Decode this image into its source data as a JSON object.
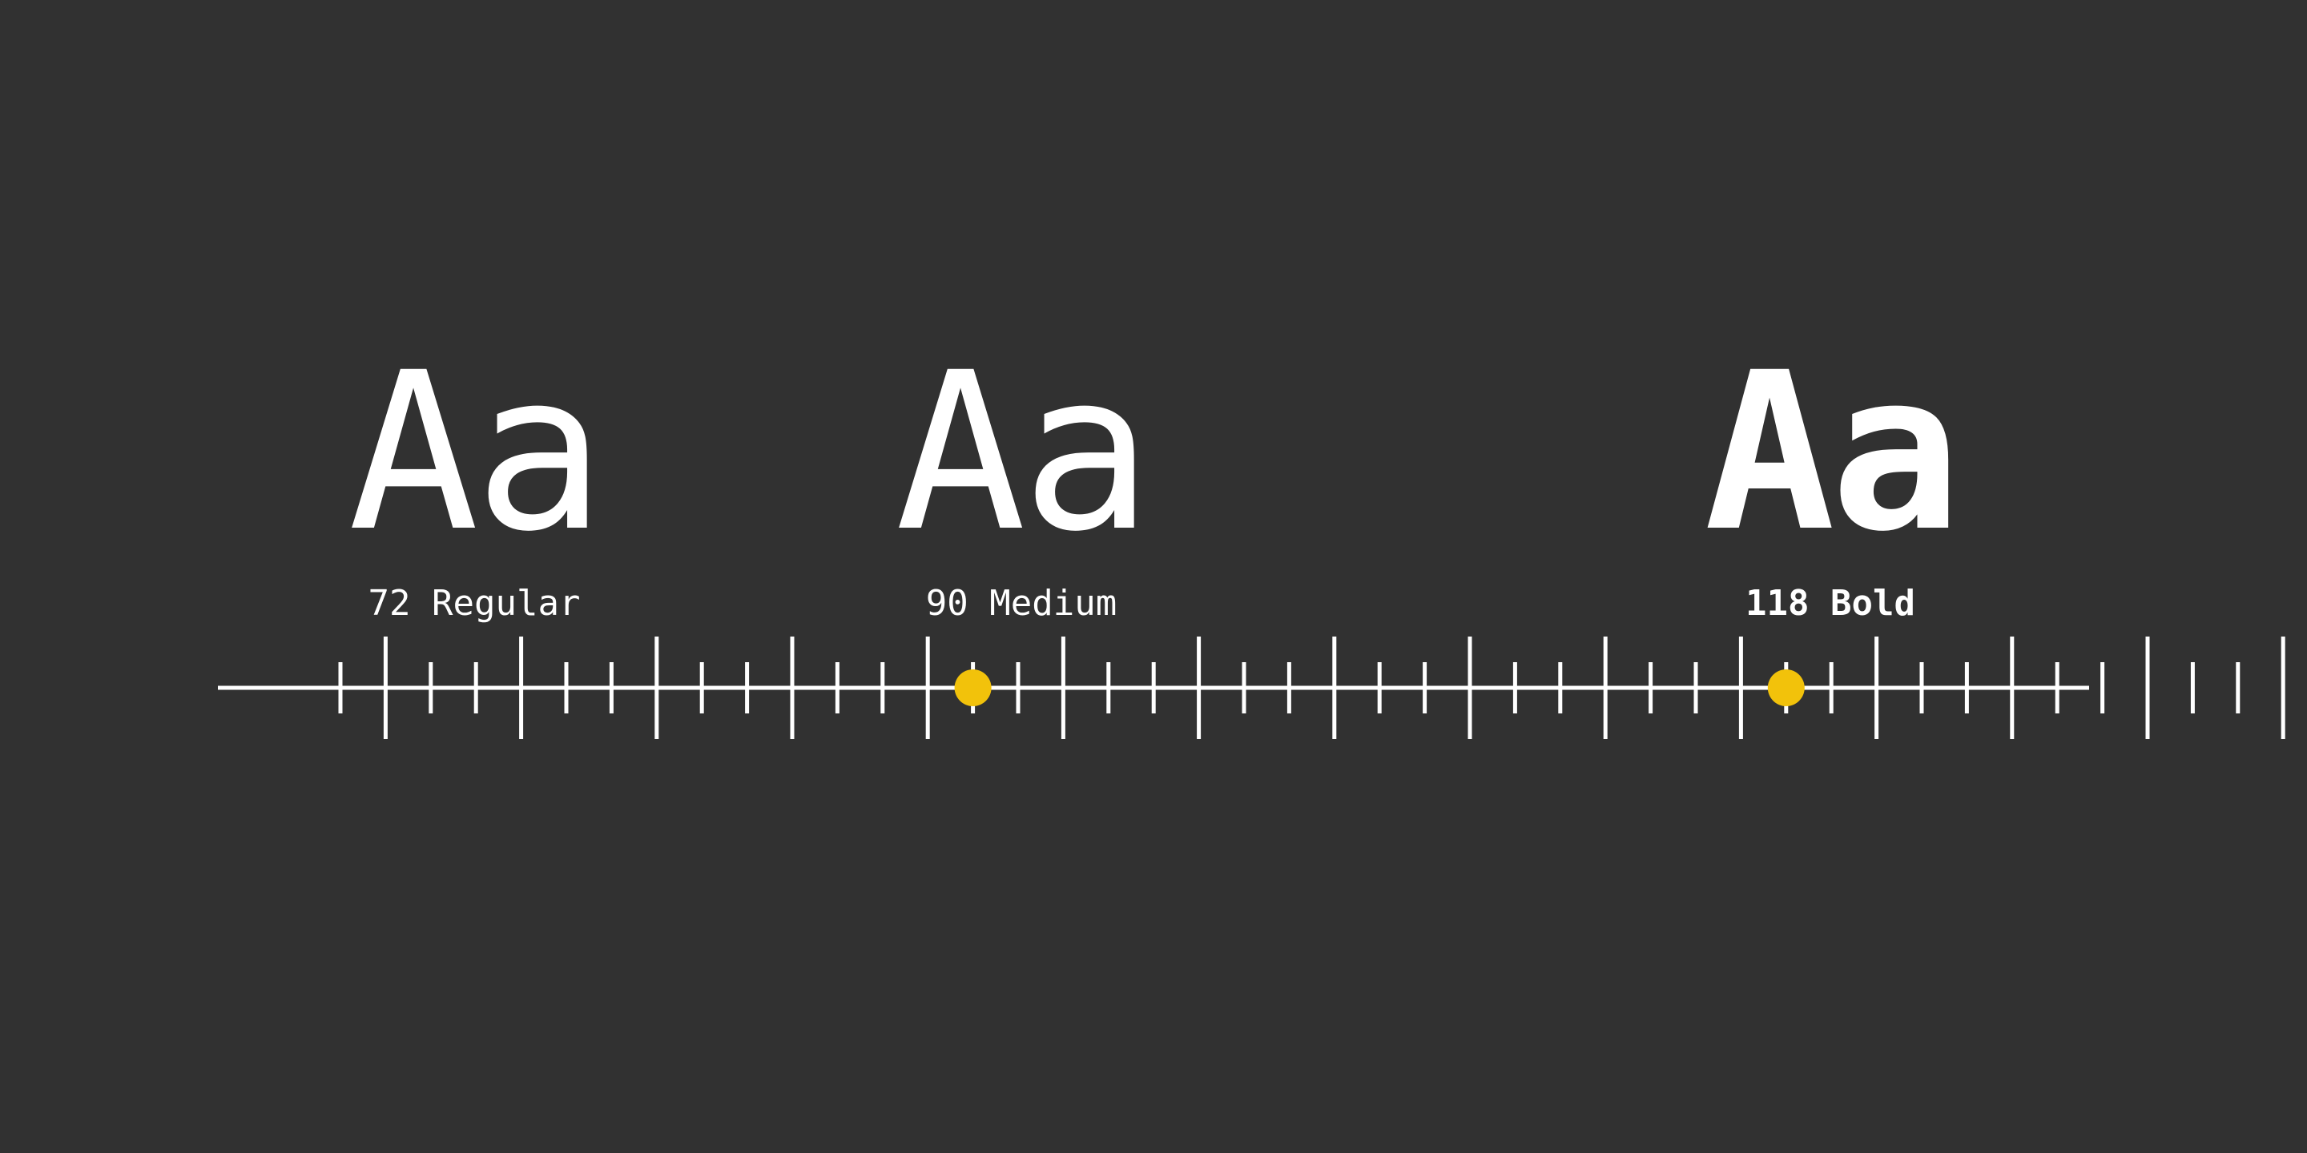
{
  "colors": {
    "background": "#313131",
    "foreground": "#ffffff",
    "accent": "#f2c20b"
  },
  "weights": [
    {
      "glyph": "Aa",
      "label": "72 Regular",
      "value": 72
    },
    {
      "glyph": "Aa",
      "label": "90 Medium",
      "value": 90
    },
    {
      "glyph": "Aa",
      "label": "118 Bold",
      "value": 118
    }
  ],
  "scale": {
    "min_tick": 58,
    "max_tick": 121,
    "major_every": 3
  }
}
